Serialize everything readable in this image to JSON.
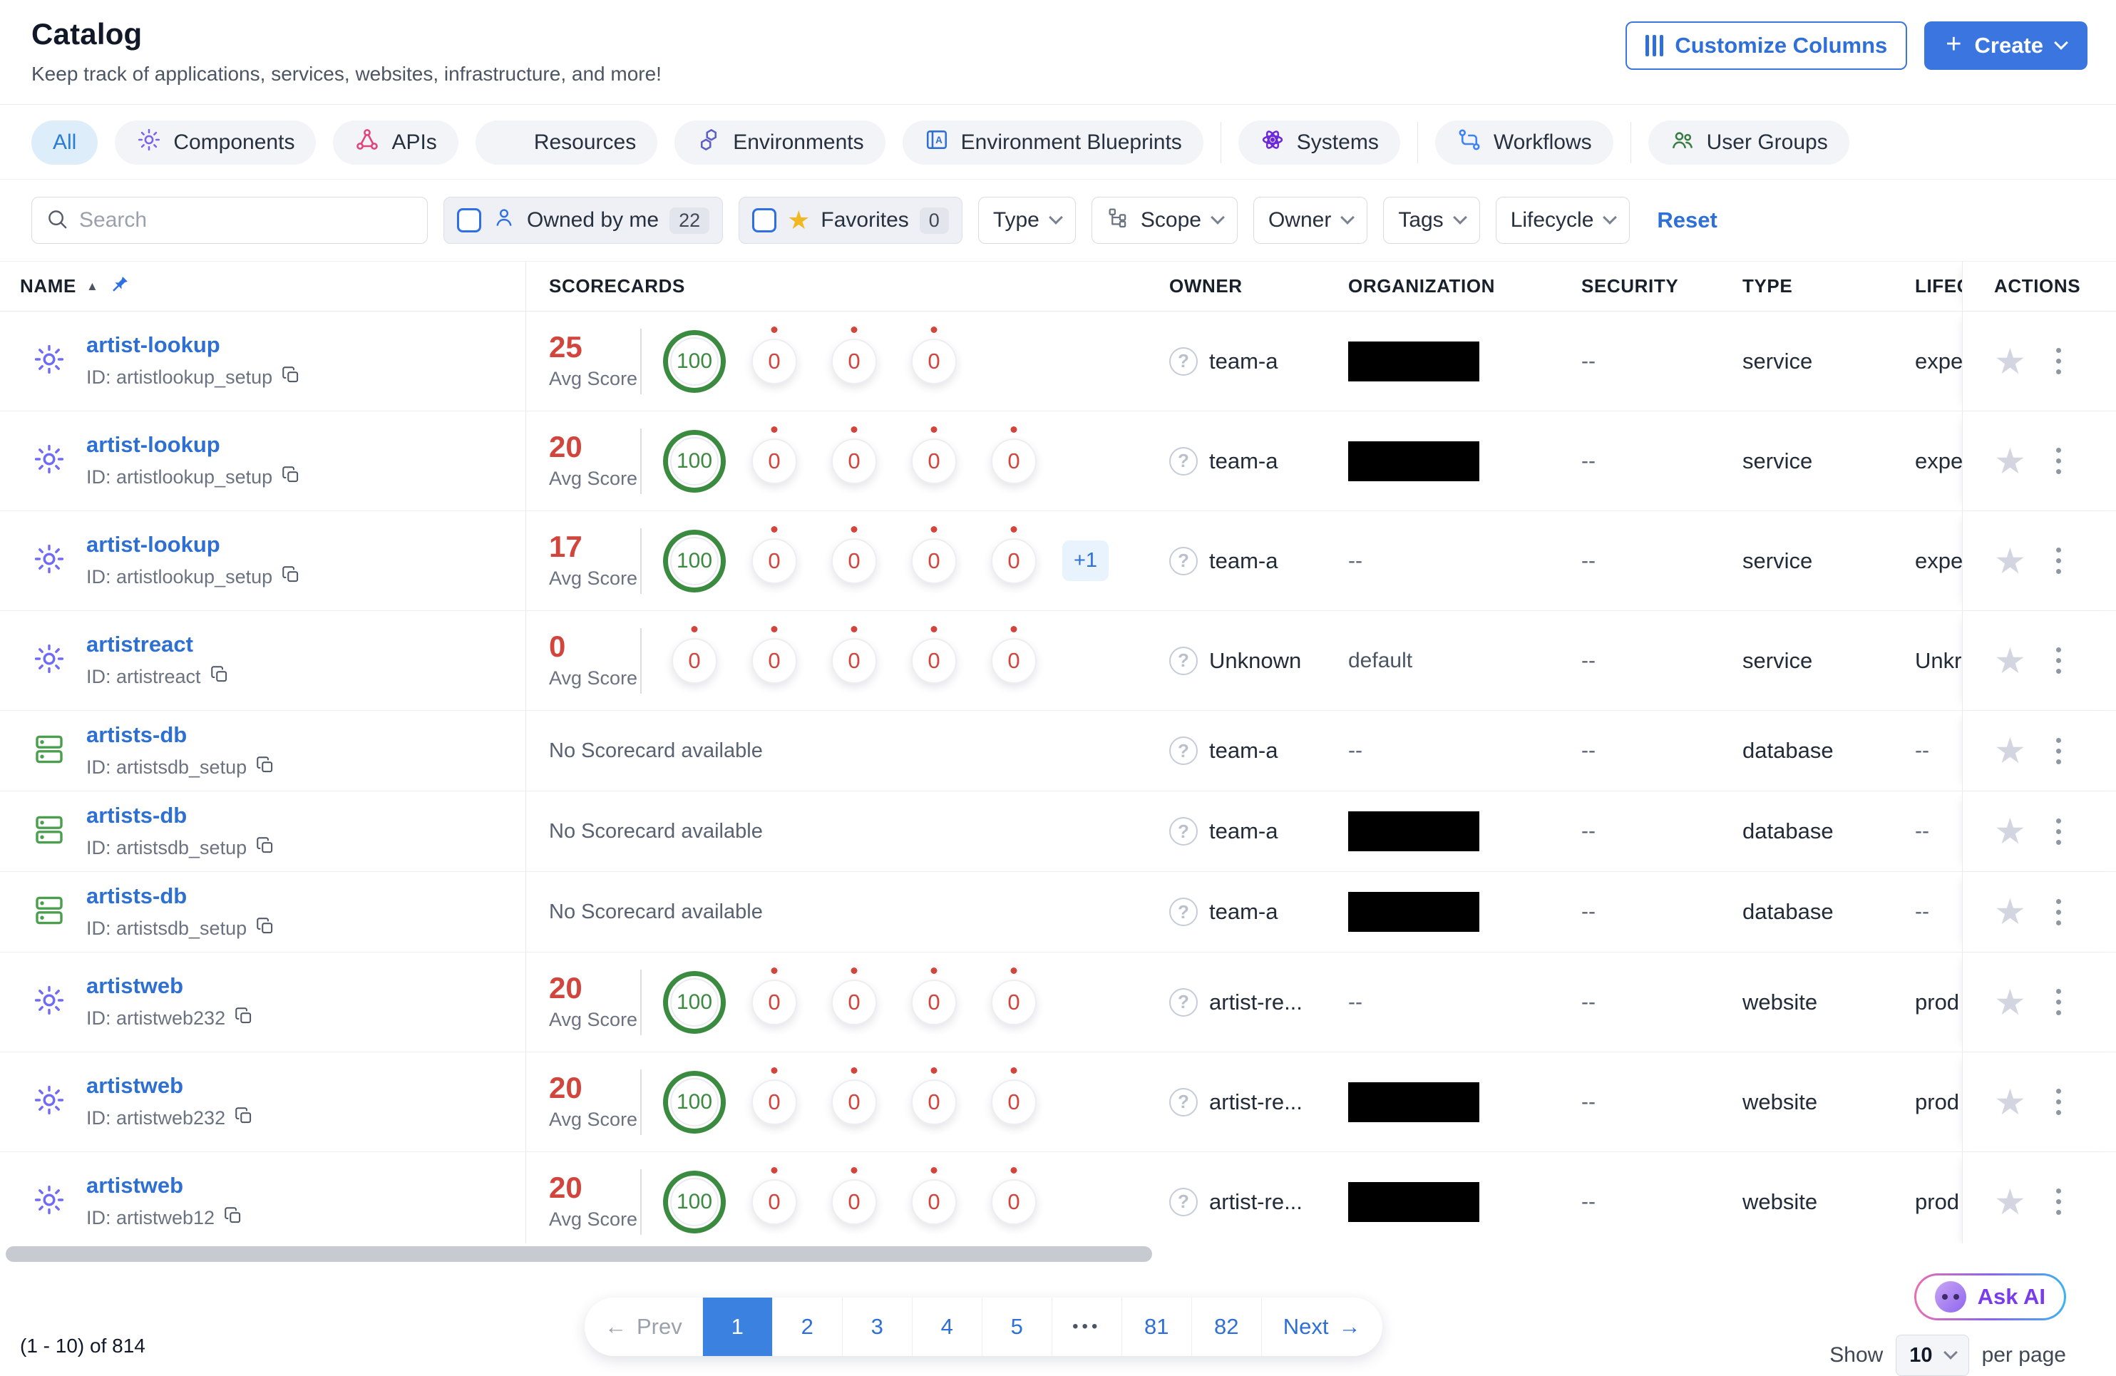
{
  "header": {
    "title": "Catalog",
    "subtitle": "Keep track of applications, services, websites, infrastructure, and more!",
    "customize_columns_label": "Customize Columns",
    "create_label": "Create"
  },
  "tabs": [
    {
      "label": "All",
      "active": true
    },
    {
      "label": "Components",
      "icon": "gear",
      "color": "#7b61f0"
    },
    {
      "label": "APIs",
      "icon": "api",
      "color": "#e0447c"
    },
    {
      "label": "Resources",
      "icon": "resources",
      "color": "#4a9e4d"
    },
    {
      "label": "Environments",
      "icon": "environments",
      "color": "#5b5fc7"
    },
    {
      "label": "Environment Blueprints",
      "icon": "blueprints",
      "color": "#2f6fd6"
    },
    {
      "label": "Systems",
      "icon": "systems",
      "color": "#6d28d9",
      "divider_before": true
    },
    {
      "label": "Workflows",
      "icon": "workflows",
      "color": "#3b82f6",
      "divider_before": true
    },
    {
      "label": "User Groups",
      "icon": "usergroups",
      "color": "#3a7d44",
      "divider_before": true
    }
  ],
  "filters": {
    "search_placeholder": "Search",
    "owned_by_me": {
      "label": "Owned by me",
      "count": "22"
    },
    "favorites": {
      "label": "Favorites",
      "count": "0"
    },
    "dropdowns": [
      {
        "label": "Type"
      },
      {
        "label": "Scope",
        "icon": "scope"
      },
      {
        "label": "Owner"
      },
      {
        "label": "Tags"
      },
      {
        "label": "Lifecycle"
      }
    ],
    "reset_label": "Reset"
  },
  "table": {
    "columns": [
      {
        "label": "NAME"
      },
      {
        "label": "SCORECARDS"
      },
      {
        "label": "OWNER"
      },
      {
        "label": "ORGANIZATION"
      },
      {
        "label": "SECURITY"
      },
      {
        "label": "TYPE"
      },
      {
        "label": "LIFEC"
      },
      {
        "label": "ACTIONS"
      }
    ],
    "avg_score_label": "Avg Score",
    "no_scorecard_text": "No Scorecard available",
    "rows": [
      {
        "icon": "gear",
        "icon_color": "#6f6af8",
        "name": "artist-lookup",
        "id": "ID: artistlookup_setup",
        "size": "tall",
        "scorecards": {
          "avg": "25",
          "main": "100",
          "zeros": 3,
          "extra": null
        },
        "owner": "team-a",
        "organization": {
          "redacted": true
        },
        "security": "--",
        "type": "service",
        "lifecycle": "expe"
      },
      {
        "icon": "gear",
        "icon_color": "#6f6af8",
        "name": "artist-lookup",
        "id": "ID: artistlookup_setup",
        "size": "tall",
        "scorecards": {
          "avg": "20",
          "main": "100",
          "zeros": 4,
          "extra": null
        },
        "owner": "team-a",
        "organization": {
          "redacted": true
        },
        "security": "--",
        "type": "service",
        "lifecycle": "expe"
      },
      {
        "icon": "gear",
        "icon_color": "#6f6af8",
        "name": "artist-lookup",
        "id": "ID: artistlookup_setup",
        "size": "tall",
        "scorecards": {
          "avg": "17",
          "main": "100",
          "zeros": 4,
          "extra": "+1"
        },
        "owner": "team-a",
        "organization": {
          "text": "--"
        },
        "security": "--",
        "type": "service",
        "lifecycle": "expe"
      },
      {
        "icon": "gear",
        "icon_color": "#6f6af8",
        "name": "artistreact",
        "id": "ID: artistreact",
        "size": "tall",
        "scorecards": {
          "avg": "0",
          "main": null,
          "zeros": 5,
          "extra": null
        },
        "owner": "Unknown",
        "organization": {
          "text": "default"
        },
        "security": "--",
        "type": "service",
        "lifecycle": "Unkr"
      },
      {
        "icon": "database",
        "icon_color": "#4a9e4d",
        "name": "artists-db",
        "id": "ID: artistsdb_setup",
        "size": "short",
        "scorecards": null,
        "owner": "team-a",
        "organization": {
          "text": "--"
        },
        "security": "--",
        "type": "database",
        "lifecycle": "--"
      },
      {
        "icon": "database",
        "icon_color": "#4a9e4d",
        "name": "artists-db",
        "id": "ID: artistsdb_setup",
        "size": "short",
        "scorecards": null,
        "owner": "team-a",
        "organization": {
          "redacted": true
        },
        "security": "--",
        "type": "database",
        "lifecycle": "--"
      },
      {
        "icon": "database",
        "icon_color": "#4a9e4d",
        "name": "artists-db",
        "id": "ID: artistsdb_setup",
        "size": "short",
        "scorecards": null,
        "owner": "team-a",
        "organization": {
          "redacted": true
        },
        "security": "--",
        "type": "database",
        "lifecycle": "--"
      },
      {
        "icon": "gear",
        "icon_color": "#6f6af8",
        "name": "artistweb",
        "id": "ID: artistweb232",
        "size": "tall",
        "scorecards": {
          "avg": "20",
          "main": "100",
          "zeros": 4,
          "extra": null
        },
        "owner": "artist-re...",
        "organization": {
          "text": "--"
        },
        "security": "--",
        "type": "website",
        "lifecycle": "prod"
      },
      {
        "icon": "gear",
        "icon_color": "#6f6af8",
        "name": "artistweb",
        "id": "ID: artistweb232",
        "size": "tall",
        "scorecards": {
          "avg": "20",
          "main": "100",
          "zeros": 4,
          "extra": null
        },
        "owner": "artist-re...",
        "organization": {
          "redacted": true
        },
        "security": "--",
        "type": "website",
        "lifecycle": "prod"
      },
      {
        "icon": "gear",
        "icon_color": "#6f6af8",
        "name": "artistweb",
        "id": "ID: artistweb12",
        "size": "tall",
        "scorecards": {
          "avg": "20",
          "main": "100",
          "zeros": 4,
          "extra": null
        },
        "owner": "artist-re...",
        "organization": {
          "redacted": true
        },
        "security": "--",
        "type": "website",
        "lifecycle": "prod"
      }
    ]
  },
  "pagination": {
    "prev_label": "Prev",
    "next_label": "Next",
    "pages": [
      "1",
      "2",
      "3",
      "4",
      "5",
      "•••",
      "81",
      "82"
    ],
    "active_page": "1"
  },
  "footer": {
    "info": "(1 - 10) of 814",
    "ask_ai_label": "Ask AI",
    "show_label": "Show",
    "per_page_value": "10",
    "per_page_suffix": "per page"
  }
}
